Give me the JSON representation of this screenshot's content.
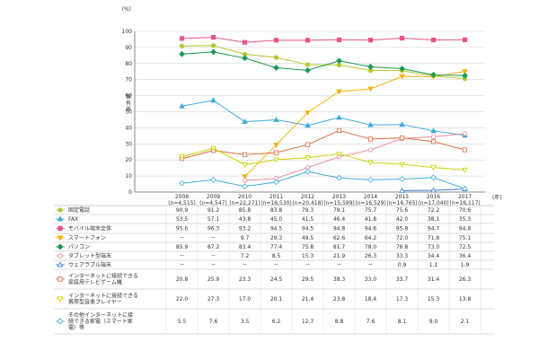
{
  "chart_data": {
    "type": "line",
    "ylabel": "保有率",
    "y_unit": "(%)",
    "x_unit": "(年)",
    "ylim": [
      0,
      100
    ],
    "yticks": [
      0,
      10,
      20,
      30,
      40,
      50,
      60,
      70,
      80,
      90,
      100
    ],
    "grid": true,
    "categories": [
      "2008",
      "2009",
      "2010",
      "2011",
      "2012",
      "2013",
      "2014",
      "2015",
      "2016",
      "2017"
    ],
    "sample_sizes": [
      "(n=4,515)",
      "(n=4,547)",
      "(n=22,271)",
      "(n=16,530)",
      "(n=20,418)",
      "(n=15,599)",
      "(n=16,529)",
      "(n=14,765)",
      "(n=17,040)",
      "(n=16,117)"
    ],
    "series": [
      {
        "name": "固定電話",
        "color": "#b5c62a",
        "marker": "circle",
        "values": [
          90.9,
          91.2,
          85.8,
          83.8,
          79.3,
          79.1,
          75.7,
          75.6,
          72.2,
          70.6
        ]
      },
      {
        "name": "FAX",
        "color": "#3fa9dc",
        "marker": "triangle",
        "values": [
          53.5,
          57.1,
          43.8,
          45.0,
          41.5,
          46.4,
          41.8,
          42.0,
          38.1,
          35.3
        ]
      },
      {
        "name": "モバイル端末全体",
        "color": "#e8528b",
        "marker": "square",
        "values": [
          95.6,
          96.3,
          93.2,
          94.5,
          94.5,
          94.8,
          94.6,
          95.8,
          94.7,
          94.8
        ]
      },
      {
        "name": "スマートフォン",
        "color": "#f2b411",
        "marker": "triangle-down",
        "values": [
          null,
          null,
          9.7,
          29.3,
          49.5,
          62.6,
          64.2,
          72.0,
          71.8,
          75.1
        ]
      },
      {
        "name": "パソコン",
        "color": "#1a9a52",
        "marker": "diamond",
        "values": [
          85.9,
          87.2,
          83.4,
          77.4,
          75.8,
          81.7,
          78.0,
          76.8,
          73.0,
          72.5
        ]
      },
      {
        "name": "タブレット型端末",
        "color": "#e68a9e",
        "marker": "circle-open",
        "values": [
          null,
          null,
          7.2,
          8.5,
          15.3,
          21.9,
          26.3,
          33.3,
          34.4,
          36.4
        ]
      },
      {
        "name": "ウェアラブル端末",
        "color": "#3f7fcf",
        "marker": "triangle-open",
        "values": [
          null,
          null,
          null,
          null,
          null,
          null,
          null,
          0.9,
          1.1,
          1.9
        ]
      },
      {
        "name": "インターネットに接続できる家庭用テレビゲーム機",
        "color": "#e06a3a",
        "marker": "square-open",
        "values": [
          20.8,
          25.9,
          23.3,
          24.5,
          29.5,
          38.3,
          33.0,
          33.7,
          31.4,
          26.3
        ]
      },
      {
        "name": "インターネットに接続できる携帯型音楽プレイヤー",
        "color": "#c8d400",
        "marker": "triangle-down-open",
        "values": [
          22.0,
          27.3,
          17.0,
          20.1,
          21.4,
          23.8,
          18.4,
          17.3,
          15.3,
          13.8
        ]
      },
      {
        "name": "その他インターネットに接続できる家電（スマート家電）等",
        "color": "#3ab0d8",
        "marker": "diamond-open",
        "values": [
          5.5,
          7.6,
          3.5,
          6.2,
          12.7,
          8.8,
          7.6,
          8.1,
          9.0,
          2.1
        ]
      }
    ],
    "table_lines": [
      [
        "固定電話"
      ],
      [
        "FAX"
      ],
      [
        "モバイル端末全体"
      ],
      [
        "スマートフォン"
      ],
      [
        "パソコン"
      ],
      [
        "タブレット型端末"
      ],
      [
        "ウェアラブル端末"
      ],
      [
        "インターネットに接続できる",
        "家庭用テレビゲーム機"
      ],
      [
        "インターネットに接続できる",
        "携帯型音楽プレイヤー"
      ],
      [
        "その他インターネットに接",
        "続できる家電（スマート家",
        "電）等"
      ]
    ],
    "missing_symbol": "－"
  }
}
